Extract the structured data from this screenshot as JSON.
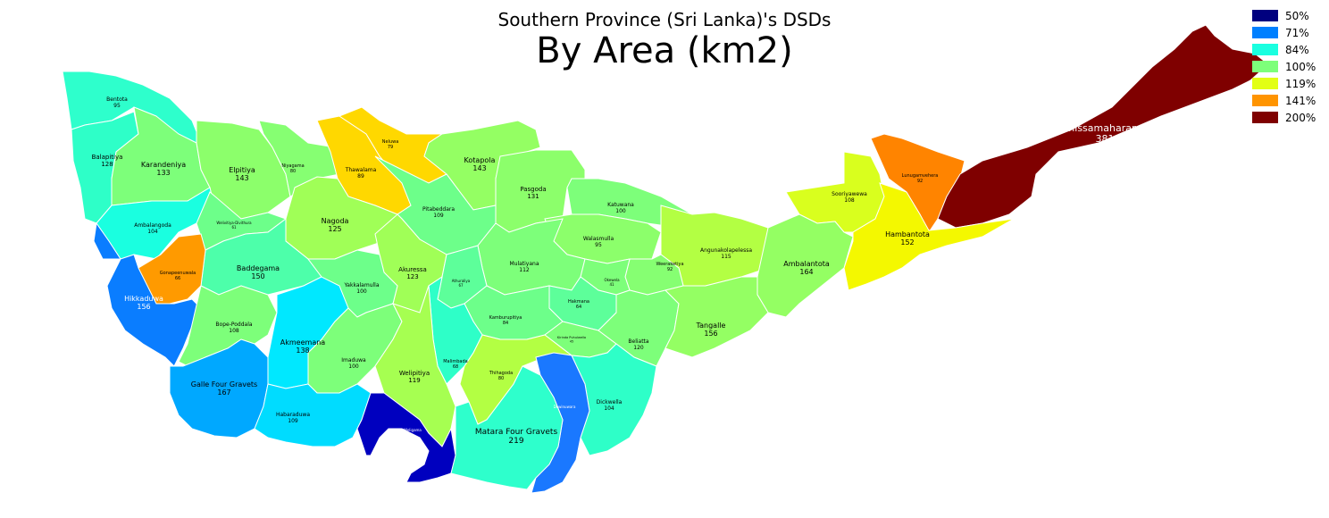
{
  "title": "Southern Province (Sri Lanka)'s DSDs",
  "subtitle": "By Area (km2)",
  "legend": [
    {
      "label": "50%",
      "color": "#00007f"
    },
    {
      "label": "71%",
      "color": "#0080ff"
    },
    {
      "label": "84%",
      "color": "#1affe0"
    },
    {
      "label": "100%",
      "color": "#7dff7a"
    },
    {
      "label": "119%",
      "color": "#e2ff14"
    },
    {
      "label": "141%",
      "color": "#ff9400"
    },
    {
      "label": "200%",
      "color": "#7f0000"
    }
  ],
  "regions": [
    {
      "name": "Bentota",
      "value": "95",
      "color": "#2effcc"
    },
    {
      "name": "Balapitiya",
      "value": "128",
      "color": "#2effc8"
    },
    {
      "name": "Karandeniya",
      "value": "133",
      "color": "#7dff7a"
    },
    {
      "name": "Elpitiya",
      "value": "143",
      "color": "#8cff6b"
    },
    {
      "name": "Niyagama",
      "value": "80",
      "color": "#86ff72"
    },
    {
      "name": "Thawalama",
      "value": "89",
      "color": "#ffd800"
    },
    {
      "name": "Neluwa",
      "value": "79",
      "color": "#ffd800"
    },
    {
      "name": "Kotapola",
      "value": "143",
      "color": "#94ff63"
    },
    {
      "name": "Pasgoda",
      "value": "131",
      "color": "#8cff6b"
    },
    {
      "name": "Pitabeddara",
      "value": "109",
      "color": "#6dff8a"
    },
    {
      "name": "Katuwana",
      "value": "100",
      "color": "#7dff7a"
    },
    {
      "name": "Ambalangoda",
      "value": "104",
      "color": "#1affe0"
    },
    {
      "name": "Welivitiya-Divithura",
      "value": "61",
      "color": "#6dff8a"
    },
    {
      "name": "Nagoda",
      "value": "125",
      "color": "#a0ff57"
    },
    {
      "name": "Walasmulla",
      "value": "95",
      "color": "#8cff6b"
    },
    {
      "name": "Angunakolapelessa",
      "value": "115",
      "color": "#b3ff43"
    },
    {
      "name": "Sooriyawewa",
      "value": "108",
      "color": "#d9ff1e"
    },
    {
      "name": "Lunugamvehera",
      "value": "92",
      "color": "#ff8400"
    },
    {
      "name": "Thissamaharama",
      "value": "381",
      "color": "#7f0000"
    },
    {
      "name": "Hambantota",
      "value": "152",
      "color": "#f4f800"
    },
    {
      "name": "Ambalantota",
      "value": "164",
      "color": "#94ff63"
    },
    {
      "name": "Baddegama",
      "value": "150",
      "color": "#4dffaa"
    },
    {
      "name": "Akuressa",
      "value": "123",
      "color": "#a0ff57"
    },
    {
      "name": "Mulatiyana",
      "value": "112",
      "color": "#7dff7a"
    },
    {
      "name": "Weeraketiya",
      "value": "92",
      "color": "#86ff72"
    },
    {
      "name": "Yakkalamulla",
      "value": "100",
      "color": "#6dff8a"
    },
    {
      "name": "Athuraliya",
      "value": "67",
      "color": "#5dff9a"
    },
    {
      "name": "Okewela",
      "value": "41",
      "color": "#7dff7a"
    },
    {
      "name": "Hakmana",
      "value": "64",
      "color": "#5dff9a"
    },
    {
      "name": "Gonapeenuwala",
      "value": "66",
      "color": "#ff9a00"
    },
    {
      "name": "Hikkaduwa",
      "value": "156",
      "color": "#0a7dff"
    },
    {
      "name": "Bope-Poddala",
      "value": "108",
      "color": "#7dff7a"
    },
    {
      "name": "Akmeemana",
      "value": "138",
      "color": "#00e8ff"
    },
    {
      "name": "Kamburupitiya",
      "value": "84",
      "color": "#6dff8a"
    },
    {
      "name": "Kirinda Puhulwella",
      "value": "45",
      "color": "#7dff7a"
    },
    {
      "name": "Beliatta",
      "value": "120",
      "color": "#7dff7a"
    },
    {
      "name": "Tangalle",
      "value": "156",
      "color": "#94ff63"
    },
    {
      "name": "Imaduwa",
      "value": "100",
      "color": "#7dff7a"
    },
    {
      "name": "Malimbada",
      "value": "68",
      "color": "#2effc8"
    },
    {
      "name": "Welipitiya",
      "value": "119",
      "color": "#a6ff51"
    },
    {
      "name": "Thihagoda",
      "value": "80",
      "color": "#b3ff43"
    },
    {
      "name": "Dickwella",
      "value": "104",
      "color": "#2effc8"
    },
    {
      "name": "Dewinuwara",
      "value": "",
      "color": "#1a78ff"
    },
    {
      "name": "Galle Four Gravets",
      "value": "167",
      "color": "#00a8ff"
    },
    {
      "name": "Habaraduwa",
      "value": "109",
      "color": "#00dcff"
    },
    {
      "name": "Weligama",
      "value": "",
      "color": "#0000bf"
    },
    {
      "name": "Matara Four Gravets",
      "value": "219",
      "color": "#2effcc"
    }
  ]
}
